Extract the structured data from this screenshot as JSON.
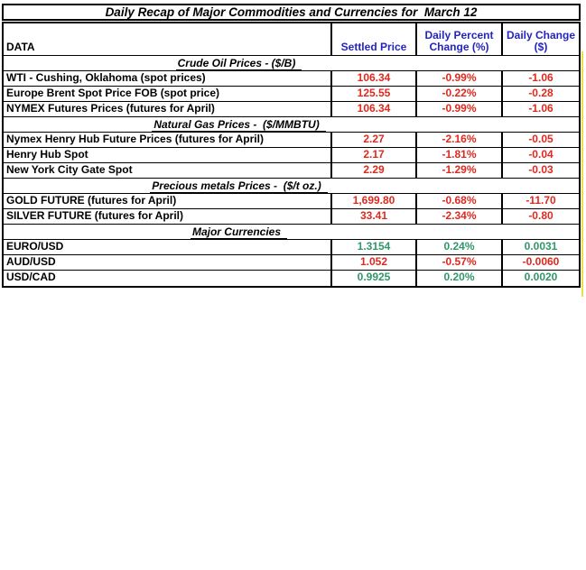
{
  "title": "Daily Recap of Major Commodities and Currencies for  March 12",
  "columns": {
    "data": "DATA",
    "settled": "Settled Price",
    "pct": "Daily Percent Change (%)",
    "chg": "Daily Change ($)"
  },
  "sections": [
    {
      "header": "Crude Oil Prices - ($/B)",
      "rows": [
        {
          "label": "WTI - Cushing, Oklahoma (spot prices)",
          "settled": "106.34",
          "pct": "-0.99%",
          "chg": "-1.06",
          "trend": "neg"
        },
        {
          "label": "Europe Brent Spot Price FOB (spot price)",
          "settled": "125.55",
          "pct": "-0.22%",
          "chg": "-0.28",
          "trend": "neg"
        },
        {
          "label": "NYMEX Futures Prices (futures for April)",
          "settled": "106.34",
          "pct": "-0.99%",
          "chg": "-1.06",
          "trend": "neg"
        }
      ]
    },
    {
      "header": "Natural Gas Prices -  ($/MMBTU)",
      "rows": [
        {
          "label": "Nymex Henry Hub Future Prices (futures for April)",
          "settled": "2.27",
          "pct": "-2.16%",
          "chg": "-0.05",
          "trend": "neg"
        },
        {
          "label": "Henry Hub Spot",
          "settled": "2.17",
          "pct": "-1.81%",
          "chg": "-0.04",
          "trend": "neg"
        },
        {
          "label": "New York City Gate Spot",
          "settled": "2.29",
          "pct": "-1.29%",
          "chg": "-0.03",
          "trend": "neg"
        }
      ]
    },
    {
      "header": "Precious metals Prices -  ($/t oz.)",
      "rows": [
        {
          "label": "GOLD FUTURE (futures for April)",
          "settled": "1,699.80",
          "pct": "-0.68%",
          "chg": "-11.70",
          "trend": "neg"
        },
        {
          "label": "SILVER FUTURE (futures for April)",
          "settled": "33.41",
          "pct": "-2.34%",
          "chg": "-0.80",
          "trend": "neg"
        }
      ]
    },
    {
      "header": "Major Currencies",
      "rows": [
        {
          "label": "EURO/USD",
          "settled": "1.3154",
          "pct": "0.24%",
          "chg": "0.0031",
          "trend": "pos"
        },
        {
          "label": "AUD/USD",
          "settled": "1.052",
          "pct": "-0.57%",
          "chg": "-0.0060",
          "trend": "neg"
        },
        {
          "label": "USD/CAD",
          "settled": "0.9925",
          "pct": "0.20%",
          "chg": "0.0020",
          "trend": "pos"
        }
      ]
    }
  ],
  "colors": {
    "negative": "#e0291e",
    "positive": "#2f9769",
    "header_blue": "#2424c0",
    "highlight_yellow": "#ecdf45"
  }
}
